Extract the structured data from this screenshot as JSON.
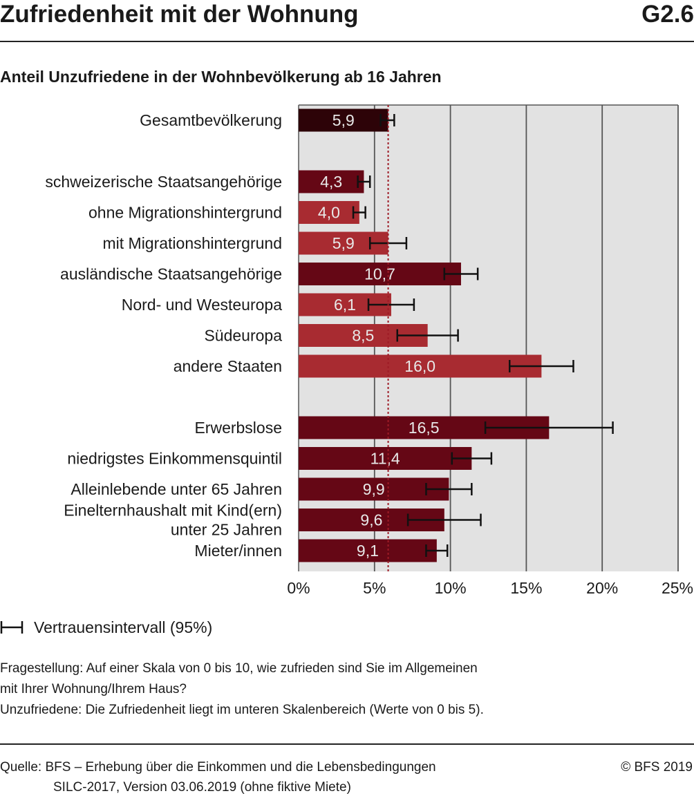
{
  "header": {
    "title": "Zufriedenheit mit der Wohnung",
    "code": "G2.6",
    "subtitle": "Anteil Unzufriedene in der Wohnbevölkerung ab 16 Jahren"
  },
  "colors": {
    "total": "#2d0308",
    "dark": "#650715",
    "light": "#a82b31",
    "plot_bg": "#e2e2e2",
    "reference_line": "#9e1b26"
  },
  "chart_data": {
    "type": "bar",
    "orientation": "horizontal",
    "xlim": [
      0,
      25
    ],
    "x_ticks": [
      "0%",
      "5%",
      "10%",
      "15%",
      "20%",
      "25%"
    ],
    "reference_value": 5.9,
    "grid": true,
    "bars": [
      {
        "label": [
          "Gesamtbevölkerung"
        ],
        "value": 5.9,
        "value_label": "5,9",
        "ci": [
          5.4,
          6.3
        ],
        "color": "total"
      },
      {
        "label": [
          "schweizerische Staatsangehörige"
        ],
        "value": 4.3,
        "value_label": "4,3",
        "ci": [
          3.9,
          4.7
        ],
        "color": "dark"
      },
      {
        "label": [
          "ohne Migrationshintergrund"
        ],
        "value": 4.0,
        "value_label": "4,0",
        "ci": [
          3.6,
          4.4
        ],
        "color": "light"
      },
      {
        "label": [
          "mit Migrationshintergrund"
        ],
        "value": 5.9,
        "value_label": "5,9",
        "ci": [
          4.7,
          7.1
        ],
        "color": "light"
      },
      {
        "label": [
          "ausländische Staatsangehörige"
        ],
        "value": 10.7,
        "value_label": "10,7",
        "ci": [
          9.6,
          11.8
        ],
        "color": "dark"
      },
      {
        "label": [
          "Nord- und Westeuropa"
        ],
        "value": 6.1,
        "value_label": "6,1",
        "ci": [
          4.6,
          7.6
        ],
        "color": "light"
      },
      {
        "label": [
          "Südeuropa"
        ],
        "value": 8.5,
        "value_label": "8,5",
        "ci": [
          6.5,
          10.5
        ],
        "color": "light"
      },
      {
        "label": [
          "andere Staaten"
        ],
        "value": 16.0,
        "value_label": "16,0",
        "ci": [
          13.9,
          18.1
        ],
        "color": "light"
      },
      {
        "label": [
          "Erwerbslose"
        ],
        "value": 16.5,
        "value_label": "16,5",
        "ci": [
          12.3,
          20.7
        ],
        "color": "dark"
      },
      {
        "label": [
          "niedrigstes Einkommensquintil"
        ],
        "value": 11.4,
        "value_label": "11,4",
        "ci": [
          10.1,
          12.7
        ],
        "color": "dark"
      },
      {
        "label": [
          "Alleinlebende unter 65 Jahren"
        ],
        "value": 9.9,
        "value_label": "9,9",
        "ci": [
          8.4,
          11.4
        ],
        "color": "dark"
      },
      {
        "label": [
          "Einelternhaushalt mit Kind(ern)",
          "unter 25 Jahren"
        ],
        "value": 9.6,
        "value_label": "9,6",
        "ci": [
          7.2,
          12.0
        ],
        "color": "dark"
      },
      {
        "label": [
          "Mieter/innen"
        ],
        "value": 9.1,
        "value_label": "9,1",
        "ci": [
          8.4,
          9.8
        ],
        "color": "dark"
      }
    ]
  },
  "legend": {
    "ci_label": "Vertrauensintervall (95%)"
  },
  "notes": {
    "question_line1": "Fragestellung: Auf einer Skala von 0 bis 10, wie zufrieden sind Sie im Allgemeinen",
    "question_line2": "mit Ihrer Wohnung/Ihrem Haus?",
    "definition": "Unzufriedene: Die Zufriedenheit liegt im unteren Skalenbereich (Werte von 0 bis 5)."
  },
  "footer": {
    "source_line1": "Quelle: BFS – Erhebung über die Einkommen und die Lebensbedingungen",
    "source_line2": "SILC-2017, Version 03.06.2019 (ohne fiktive Miete)",
    "copyright": "© BFS 2019"
  }
}
